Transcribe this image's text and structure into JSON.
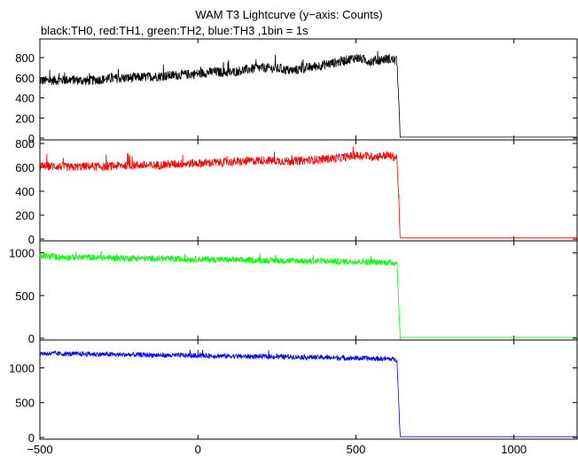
{
  "chart_data": {
    "type": "line",
    "title": "WAM T3 Lightcurve (y−axis: Counts)",
    "subtitle": "black:TH0, red:TH1, green:TH2, blue:TH3 ,1bin = 1s",
    "xlabel": "",
    "ylabel": "",
    "xlim": [
      -500,
      1200
    ],
    "x_ticks": [
      -500,
      0,
      500,
      1000
    ],
    "x_tick_labels": [
      "−500",
      "0",
      "500",
      "1000"
    ],
    "grid": false,
    "legend": "none",
    "cutoff_x": 640,
    "panels": [
      {
        "name": "TH0",
        "color": "#000000",
        "ylim": [
          0,
          950
        ],
        "y_ticks": [
          0,
          200,
          400,
          600,
          800
        ],
        "y_tick_labels": [
          "0",
          "200",
          "400",
          "600",
          "800"
        ],
        "x": [
          -500,
          -450,
          -400,
          -350,
          -300,
          -250,
          -200,
          -150,
          -100,
          -50,
          0,
          50,
          100,
          150,
          200,
          250,
          300,
          350,
          400,
          450,
          500,
          550,
          600,
          630,
          640,
          1200
        ],
        "values": [
          570,
          575,
          580,
          570,
          585,
          595,
          600,
          610,
          620,
          630,
          640,
          660,
          650,
          680,
          700,
          690,
          670,
          700,
          730,
          760,
          800,
          760,
          790,
          770,
          10,
          10
        ],
        "noise": 60
      },
      {
        "name": "TH1",
        "color": "#ff0000",
        "ylim": [
          0,
          800
        ],
        "y_ticks": [
          0,
          200,
          400,
          600,
          800
        ],
        "y_tick_labels": [
          "0",
          "200",
          "400",
          "600",
          "800"
        ],
        "x": [
          -500,
          -450,
          -400,
          -350,
          -300,
          -250,
          -200,
          -150,
          -100,
          -50,
          0,
          50,
          100,
          150,
          200,
          250,
          300,
          350,
          400,
          450,
          500,
          550,
          600,
          630,
          640,
          1200
        ],
        "values": [
          610,
          610,
          600,
          610,
          605,
          615,
          620,
          615,
          625,
          630,
          635,
          640,
          645,
          650,
          660,
          655,
          650,
          660,
          670,
          680,
          700,
          690,
          700,
          680,
          10,
          10
        ],
        "noise": 45
      },
      {
        "name": "TH2",
        "color": "#00ff00",
        "ylim": [
          0,
          1100
        ],
        "y_ticks": [
          0,
          500,
          1000
        ],
        "y_tick_labels": [
          "0",
          "500",
          "1000"
        ],
        "x": [
          -500,
          -450,
          -400,
          -350,
          -300,
          -250,
          -200,
          -150,
          -100,
          -50,
          0,
          50,
          100,
          150,
          200,
          250,
          300,
          350,
          400,
          450,
          500,
          550,
          600,
          630,
          640,
          1200
        ],
        "values": [
          960,
          955,
          950,
          950,
          945,
          940,
          940,
          935,
          930,
          930,
          925,
          925,
          920,
          915,
          915,
          910,
          910,
          905,
          905,
          900,
          900,
          895,
          890,
          885,
          10,
          10
        ],
        "noise": 45
      },
      {
        "name": "TH3",
        "color": "#0000ff",
        "ylim": [
          0,
          1350
        ],
        "y_ticks": [
          0,
          500,
          1000
        ],
        "y_tick_labels": [
          "0",
          "500",
          "1000"
        ],
        "x": [
          -500,
          -450,
          -400,
          -350,
          -300,
          -250,
          -200,
          -150,
          -100,
          -50,
          0,
          50,
          100,
          150,
          200,
          250,
          300,
          350,
          400,
          450,
          500,
          550,
          600,
          630,
          640,
          1200
        ],
        "values": [
          1210,
          1205,
          1200,
          1200,
          1195,
          1190,
          1190,
          1185,
          1180,
          1180,
          1175,
          1175,
          1170,
          1165,
          1165,
          1160,
          1160,
          1155,
          1150,
          1145,
          1140,
          1135,
          1130,
          1120,
          10,
          10
        ],
        "noise": 45
      }
    ]
  }
}
